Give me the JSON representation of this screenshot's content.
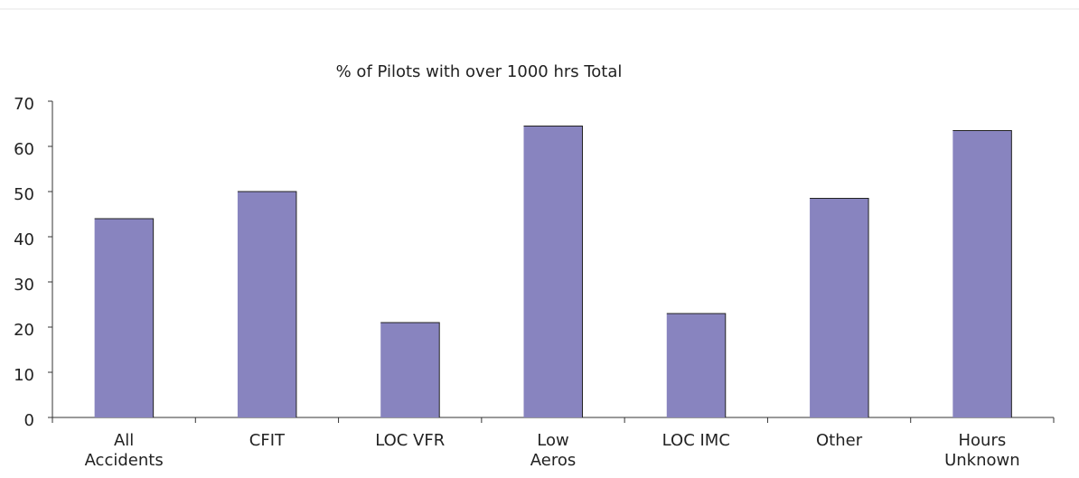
{
  "chart_data": {
    "type": "bar",
    "title": "% of Pilots with over 1000 hrs Total",
    "categories": [
      "All\nAccidents",
      "CFIT",
      "LOC VFR",
      "Low\nAeros",
      "LOC IMC",
      "Other",
      "Hours\nUnknown"
    ],
    "values": [
      44,
      50,
      21,
      64.5,
      23,
      48.5,
      63.5
    ],
    "color": "#8884bf",
    "ylim": [
      0,
      70
    ],
    "yticks": [
      0,
      10,
      20,
      30,
      40,
      50,
      60,
      70
    ],
    "grid": false
  }
}
